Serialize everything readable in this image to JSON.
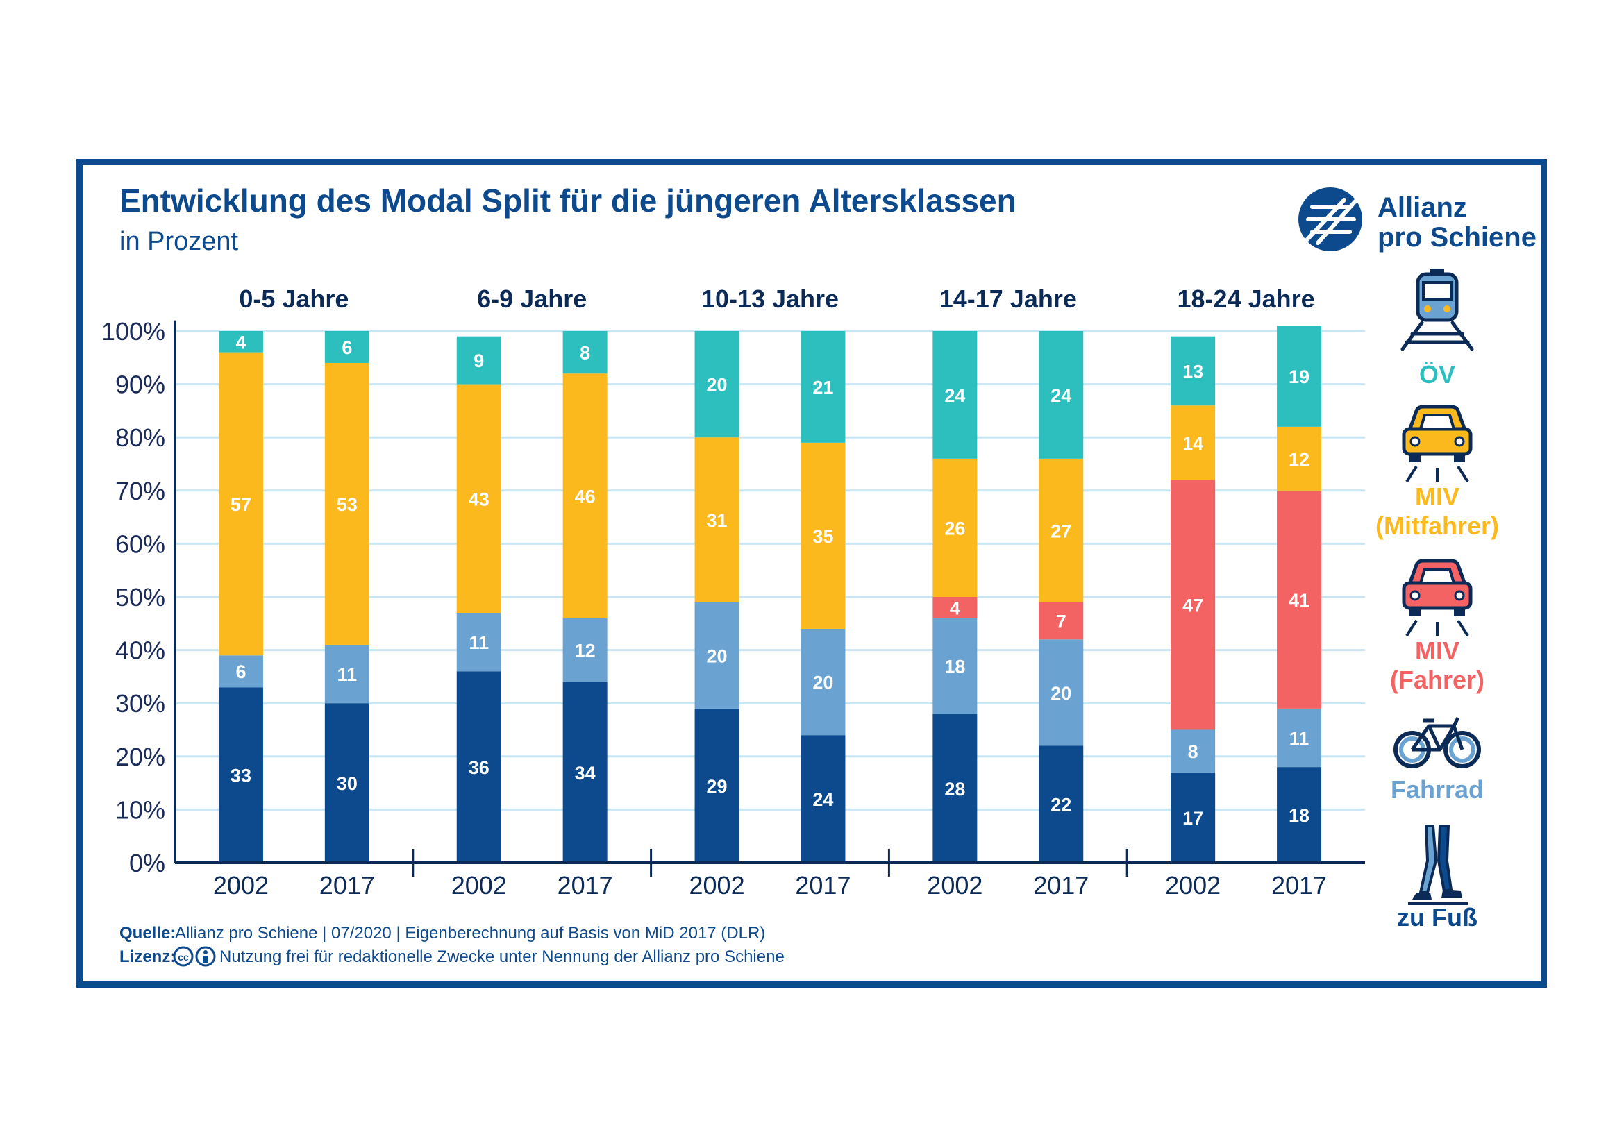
{
  "chart_data": {
    "type": "bar",
    "stacked": true,
    "title": "Entwicklung des Modal Split für die jüngeren Altersklassen",
    "subtitle": "in Prozent",
    "ylim": [
      0,
      100
    ],
    "yticks": [
      "0%",
      "10%",
      "20%",
      "30%",
      "40%",
      "50%",
      "60%",
      "70%",
      "80%",
      "90%",
      "100%"
    ],
    "groups": [
      {
        "label": "0-5 Jahre",
        "bars": [
          {
            "year": "2002",
            "values": {
              "fuss": 33,
              "fahrrad": 6,
              "miv_fahrer": 0,
              "miv_mitfahrer": 57,
              "oev": 4
            }
          },
          {
            "year": "2017",
            "values": {
              "fuss": 30,
              "fahrrad": 11,
              "miv_fahrer": 0,
              "miv_mitfahrer": 53,
              "oev": 6
            }
          }
        ]
      },
      {
        "label": "6-9 Jahre",
        "bars": [
          {
            "year": "2002",
            "values": {
              "fuss": 36,
              "fahrrad": 11,
              "miv_fahrer": 0,
              "miv_mitfahrer": 43,
              "oev": 9
            }
          },
          {
            "year": "2017",
            "values": {
              "fuss": 34,
              "fahrrad": 12,
              "miv_fahrer": 0,
              "miv_mitfahrer": 46,
              "oev": 8
            }
          }
        ]
      },
      {
        "label": "10-13 Jahre",
        "bars": [
          {
            "year": "2002",
            "values": {
              "fuss": 29,
              "fahrrad": 20,
              "miv_fahrer": 0,
              "miv_mitfahrer": 31,
              "oev": 20
            }
          },
          {
            "year": "2017",
            "values": {
              "fuss": 24,
              "fahrrad": 20,
              "miv_fahrer": 0,
              "miv_mitfahrer": 35,
              "oev": 21
            }
          }
        ]
      },
      {
        "label": "14-17 Jahre",
        "bars": [
          {
            "year": "2002",
            "values": {
              "fuss": 28,
              "fahrrad": 18,
              "miv_fahrer": 4,
              "miv_mitfahrer": 26,
              "oev": 24
            }
          },
          {
            "year": "2017",
            "values": {
              "fuss": 22,
              "fahrrad": 20,
              "miv_fahrer": 7,
              "miv_mitfahrer": 27,
              "oev": 24
            }
          }
        ]
      },
      {
        "label": "18-24 Jahre",
        "bars": [
          {
            "year": "2002",
            "values": {
              "fuss": 17,
              "fahrrad": 8,
              "miv_fahrer": 47,
              "miv_mitfahrer": 14,
              "oev": 13
            }
          },
          {
            "year": "2017",
            "values": {
              "fuss": 18,
              "fahrrad": 11,
              "miv_fahrer": 41,
              "miv_mitfahrer": 12,
              "oev": 19
            }
          }
        ]
      }
    ],
    "series": [
      {
        "key": "fuss",
        "name": "zu Fuß",
        "color": "#0d4a8d",
        "icon": "walking-legs-icon"
      },
      {
        "key": "fahrrad",
        "name": "Fahrrad",
        "color": "#6aa3d2",
        "icon": "bicycle-icon"
      },
      {
        "key": "miv_fahrer",
        "name": "MIV (Fahrer)",
        "color": "#f46363",
        "icon": "car-driver-icon"
      },
      {
        "key": "miv_mitfahrer",
        "name": "MIV (Mitfahrer)",
        "color": "#fbb91d",
        "icon": "car-passenger-icon"
      },
      {
        "key": "oev",
        "name": "ÖV",
        "color": "#2dbfbe",
        "icon": "train-icon"
      }
    ],
    "legend_placement": "right",
    "grid": true
  },
  "legend_lines": {
    "oev": [
      "ÖV"
    ],
    "miv_mitfahrer": [
      "MIV",
      "(Mitfahrer)"
    ],
    "miv_fahrer": [
      "MIV",
      "(Fahrer)"
    ],
    "fahrrad": [
      "Fahrrad"
    ],
    "fuss": [
      "zu Fuß"
    ]
  },
  "logo": {
    "line1": "Allianz",
    "line2": "pro Schiene"
  },
  "footer": {
    "source_label": "Quelle:",
    "source_text": "Allianz pro Schiene | 07/2020 | Eigenberechnung auf Basis von MiD 2017 (DLR)",
    "license_label": "Lizenz:",
    "license_text": "Nutzung frei für redaktionelle Zwecke unter Nennung der Allianz pro Schiene"
  }
}
